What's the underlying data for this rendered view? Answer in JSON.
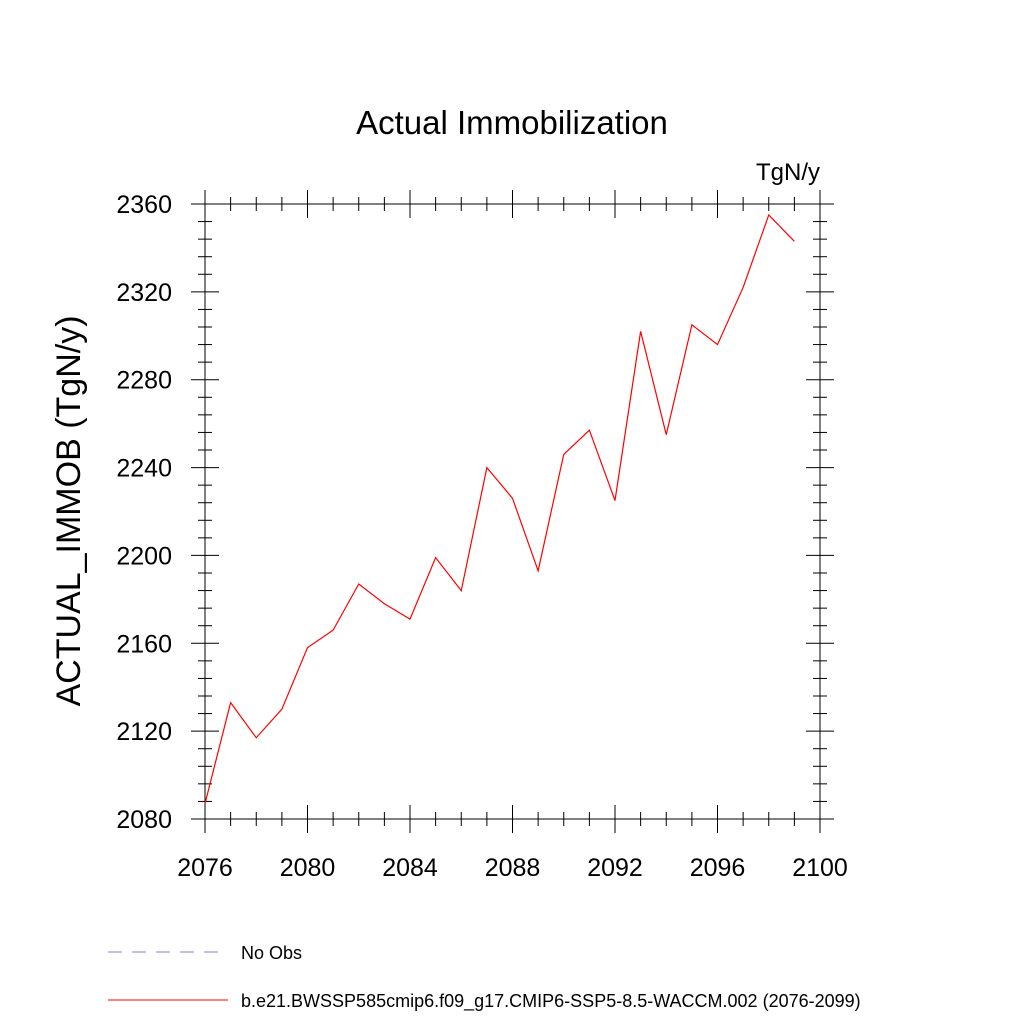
{
  "chart_data": {
    "type": "line",
    "title": "Actual Immobilization",
    "units_label": "TgN/y",
    "xlabel": "",
    "ylabel": "ACTUAL_IMMOB  (TgN/y)",
    "xlim": [
      2076,
      2100
    ],
    "ylim": [
      2080,
      2360
    ],
    "x_ticks": [
      2076,
      2080,
      2084,
      2088,
      2092,
      2096,
      2100
    ],
    "x_tick_labels": [
      "2076",
      "2080",
      "2084",
      "2088",
      "2092",
      "2096",
      "2100"
    ],
    "y_ticks": [
      2080,
      2120,
      2160,
      2200,
      2240,
      2280,
      2320,
      2360
    ],
    "y_tick_labels": [
      "2080",
      "2120",
      "2160",
      "2200",
      "2240",
      "2280",
      "2320",
      "2360"
    ],
    "x_minor_step": 1,
    "y_minor_step": 8,
    "grid": false,
    "legend_position": "bottom-left",
    "series": [
      {
        "name": "b.e21.BWSSP585cmip6.f09_g17.CMIP6-SSP5-8.5-WACCM.002 (2076-2099)",
        "color": "#ff0000",
        "style": "solid",
        "x": [
          2076,
          2077,
          2078,
          2079,
          2080,
          2081,
          2082,
          2083,
          2084,
          2085,
          2086,
          2087,
          2088,
          2089,
          2090,
          2091,
          2092,
          2093,
          2094,
          2095,
          2096,
          2097,
          2098,
          2099
        ],
        "y": [
          2087,
          2133,
          2117,
          2130,
          2158,
          2166,
          2187,
          2178,
          2171,
          2199,
          2184,
          2240,
          2226,
          2193,
          2246,
          2257,
          2225,
          2302,
          2255,
          2305,
          2296,
          2322,
          2355,
          2343
        ]
      }
    ],
    "legend": [
      {
        "label": "No Obs",
        "color": "#8080c0",
        "style": "dashed"
      },
      {
        "label": "b.e21.BWSSP585cmip6.f09_g17.CMIP6-SSP5-8.5-WACCM.002 (2076-2099)",
        "color": "#ff0000",
        "style": "solid"
      }
    ]
  }
}
